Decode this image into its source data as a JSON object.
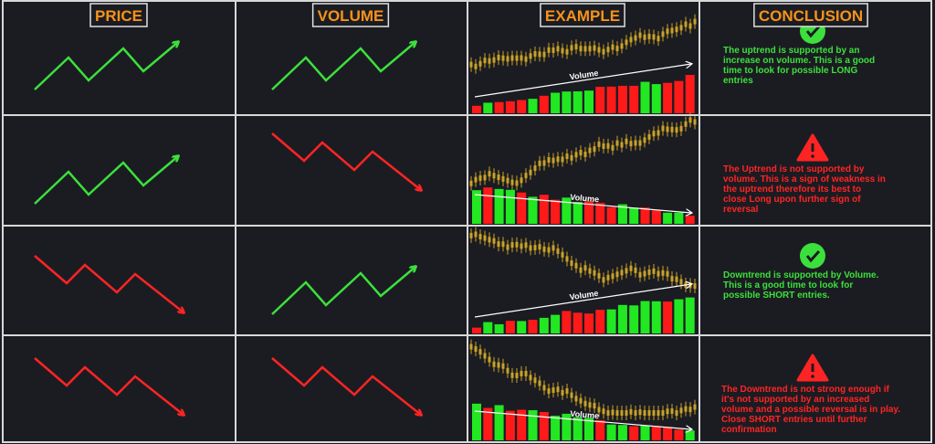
{
  "header": {
    "columns": [
      "PRICE",
      "VOLUME",
      "EXAMPLE",
      "CONCLUSION"
    ]
  },
  "rows": [
    {
      "volume_label": "Volume",
      "conclusion": [
        "The uptrend is supported by an",
        "increase on volume. This is a good",
        "time to look for possible LONG",
        "entries"
      ]
    },
    {
      "volume_label": "Volume",
      "conclusion": [
        "The Uptrend is not supported by",
        "volume. This is a sign of weakness in",
        "the uptrend therefore its best to",
        "close Long upon further sign of",
        "reversal"
      ]
    },
    {
      "volume_label": "Volume",
      "conclusion": [
        "Downtrend is supported by Volume.",
        "This is a good time to look for",
        "possible SHORT entries."
      ]
    },
    {
      "volume_label": "Volume",
      "conclusion": [
        "The Downtrend is not strong enough if",
        "it's not supported by an increased",
        "volume and a possible reversal is in play.",
        "Close SHORT entries until further",
        "confirmation"
      ]
    }
  ]
}
